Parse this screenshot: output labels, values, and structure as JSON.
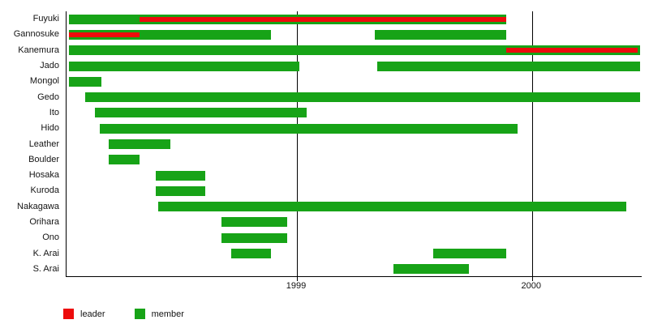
{
  "chart_data": {
    "type": "bar",
    "variant": "gantt-timeline",
    "title": "",
    "xlabel": "",
    "ylabel": "",
    "grid": "vertical-lines-at-year-ticks",
    "legend_position": "bottom-left",
    "x_axis": {
      "min": 1998.02,
      "max": 2000.47,
      "ticks": [
        {
          "value": 1999,
          "label": "1999"
        },
        {
          "value": 2000,
          "label": "2000"
        }
      ]
    },
    "colors": {
      "member": "#17a317",
      "leader": "#ed0c0c",
      "axis": "#000000",
      "text": "#141414",
      "background": "#ffffff"
    },
    "legend": [
      {
        "key": "leader",
        "label": "leader",
        "color": "#ed0c0c"
      },
      {
        "key": "member",
        "label": "member",
        "color": "#17a317"
      }
    ],
    "rows": [
      {
        "name": "Fuyuki",
        "member": [
          [
            1998.03,
            1999.89
          ]
        ],
        "leader": [
          [
            1998.33,
            1999.89
          ]
        ]
      },
      {
        "name": "Gannosuke",
        "member": [
          [
            1998.03,
            1998.89
          ],
          [
            1999.33,
            1999.89
          ]
        ],
        "leader": [
          [
            1998.03,
            1998.33
          ]
        ]
      },
      {
        "name": "Kanemura",
        "member": [
          [
            1998.03,
            2000.46
          ]
        ],
        "leader": [
          [
            1999.89,
            2000.45
          ]
        ]
      },
      {
        "name": "Jado",
        "member": [
          [
            1998.03,
            1999.01
          ],
          [
            1999.34,
            2000.46
          ]
        ],
        "leader": []
      },
      {
        "name": "Mongol",
        "member": [
          [
            1998.03,
            1998.17
          ]
        ],
        "leader": []
      },
      {
        "name": "Gedo",
        "member": [
          [
            1998.1,
            2000.46
          ]
        ],
        "leader": []
      },
      {
        "name": "Ito",
        "member": [
          [
            1998.14,
            1999.04
          ]
        ],
        "leader": []
      },
      {
        "name": "Hido",
        "member": [
          [
            1998.16,
            1999.94
          ]
        ],
        "leader": []
      },
      {
        "name": "Leather",
        "member": [
          [
            1998.2,
            1998.46
          ]
        ],
        "leader": []
      },
      {
        "name": "Boulder",
        "member": [
          [
            1998.2,
            1998.33
          ]
        ],
        "leader": []
      },
      {
        "name": "Hosaka",
        "member": [
          [
            1998.4,
            1998.61
          ]
        ],
        "leader": []
      },
      {
        "name": "Kuroda",
        "member": [
          [
            1998.4,
            1998.61
          ]
        ],
        "leader": []
      },
      {
        "name": "Nakagawa",
        "member": [
          [
            1998.41,
            2000.4
          ]
        ],
        "leader": []
      },
      {
        "name": "Orihara",
        "member": [
          [
            1998.68,
            1998.96
          ]
        ],
        "leader": []
      },
      {
        "name": "Ono",
        "member": [
          [
            1998.68,
            1998.96
          ]
        ],
        "leader": []
      },
      {
        "name": "K. Arai",
        "member": [
          [
            1998.72,
            1998.89
          ],
          [
            1999.58,
            1999.89
          ]
        ],
        "leader": []
      },
      {
        "name": "S. Arai",
        "member": [
          [
            1999.41,
            1999.73
          ]
        ],
        "leader": []
      }
    ]
  }
}
